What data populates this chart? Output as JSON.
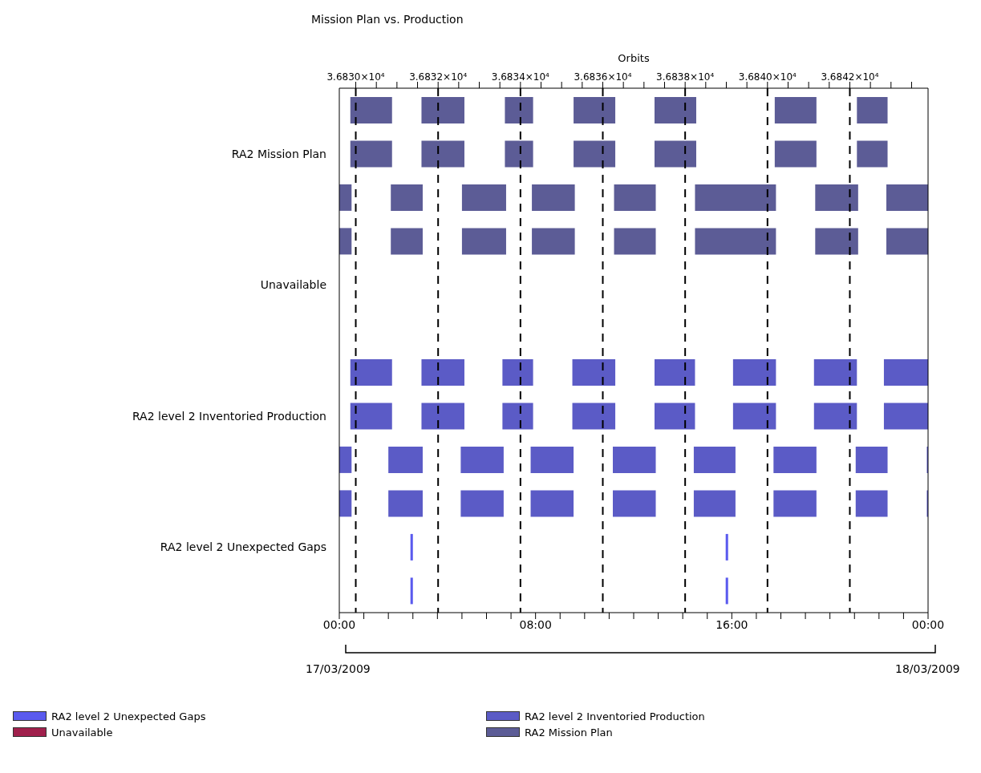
{
  "chart_data": {
    "type": "bar",
    "orientation": "horizontal",
    "title": "Mission Plan vs. Production",
    "x2label": "Orbits",
    "categories": [
      null,
      "RA2 Mission Plan",
      null,
      null,
      "Unavailable",
      null,
      null,
      "RA2 level 2 Inventoried Production",
      null,
      null,
      "RA2 level 2 Unexpected Gaps",
      null
    ],
    "xlim": [
      0,
      24
    ],
    "xticks": [
      {
        "value": 0,
        "label": "00:00"
      },
      {
        "value": 1,
        "label": null
      },
      {
        "value": 2,
        "label": null
      },
      {
        "value": 3,
        "label": null
      },
      {
        "value": 4,
        "label": null
      },
      {
        "value": 5,
        "label": null
      },
      {
        "value": 6,
        "label": null
      },
      {
        "value": 7,
        "label": null
      },
      {
        "value": 8,
        "label": "08:00"
      },
      {
        "value": 9,
        "label": null
      },
      {
        "value": 10,
        "label": null
      },
      {
        "value": 11,
        "label": null
      },
      {
        "value": 12,
        "label": null
      },
      {
        "value": 13,
        "label": null
      },
      {
        "value": 14,
        "label": null
      },
      {
        "value": 15,
        "label": null
      },
      {
        "value": 16,
        "label": "16:00"
      },
      {
        "value": 17,
        "label": null
      },
      {
        "value": 18,
        "label": null
      },
      {
        "value": 19,
        "label": null
      },
      {
        "value": 20,
        "label": null
      },
      {
        "value": 21,
        "label": null
      },
      {
        "value": 22,
        "label": null
      },
      {
        "value": 23,
        "label": null
      },
      {
        "value": 24,
        "label": "00:00"
      }
    ],
    "x2lim": [
      36829.6,
      36843.9
    ],
    "x2ticks": [
      {
        "value": 36830,
        "label": "3.6830×10⁴"
      },
      {
        "value": 36830.5,
        "label": null
      },
      {
        "value": 36831,
        "label": null
      },
      {
        "value": 36831.5,
        "label": null
      },
      {
        "value": 36832,
        "label": "3.6832×10⁴"
      },
      {
        "value": 36832.5,
        "label": null
      },
      {
        "value": 36833,
        "label": null
      },
      {
        "value": 36833.5,
        "label": null
      },
      {
        "value": 36834,
        "label": "3.6834×10⁴"
      },
      {
        "value": 36834.5,
        "label": null
      },
      {
        "value": 36835,
        "label": null
      },
      {
        "value": 36835.5,
        "label": null
      },
      {
        "value": 36836,
        "label": "3.6836×10⁴"
      },
      {
        "value": 36836.5,
        "label": null
      },
      {
        "value": 36837,
        "label": null
      },
      {
        "value": 36837.5,
        "label": null
      },
      {
        "value": 36838,
        "label": "3.6838×10⁴"
      },
      {
        "value": 36838.5,
        "label": null
      },
      {
        "value": 36839,
        "label": null
      },
      {
        "value": 36839.5,
        "label": null
      },
      {
        "value": 36840,
        "label": "3.6840×10⁴"
      },
      {
        "value": 36840.5,
        "label": null
      },
      {
        "value": 36841,
        "label": null
      },
      {
        "value": 36841.5,
        "label": null
      },
      {
        "value": 36842,
        "label": "3.6842×10⁴"
      },
      {
        "value": 36842.5,
        "label": null
      },
      {
        "value": 36843,
        "label": null
      },
      {
        "value": 36843.5,
        "label": null
      }
    ],
    "ref_lines": [
      {
        "axis": "x2",
        "value": 36830,
        "color": "#000000",
        "line_style": "dashed"
      },
      {
        "axis": "x2",
        "value": 36832,
        "color": "#000000",
        "line_style": "dashed"
      },
      {
        "axis": "x2",
        "value": 36834,
        "color": "#000000",
        "line_style": "dashed"
      },
      {
        "axis": "x2",
        "value": 36836,
        "color": "#000000",
        "line_style": "dashed"
      },
      {
        "axis": "x2",
        "value": 36838,
        "color": "#000000",
        "line_style": "dashed"
      },
      {
        "axis": "x2",
        "value": 36840,
        "color": "#000000",
        "line_style": "dashed"
      },
      {
        "axis": "x2",
        "value": 36842,
        "color": "#000000",
        "line_style": "dashed"
      }
    ],
    "annotations": [
      "17/03/2009",
      "18/03/2009"
    ],
    "legend": "bottom",
    "series": [
      {
        "name": "RA2 level 2 Unexpected Gaps",
        "color": "#5a5aee",
        "base": [
          null,
          null,
          null,
          null,
          null,
          null,
          null,
          null,
          null,
          null,
          2.9,
          2.9
        ],
        "values": [
          null,
          null,
          null,
          null,
          null,
          null,
          null,
          null,
          null,
          null,
          0.1,
          0.1
        ]
      },
      {
        "color": "#5a5aee",
        "base": [
          null,
          null,
          null,
          null,
          null,
          null,
          null,
          null,
          null,
          null,
          15.75,
          15.75
        ],
        "values": [
          null,
          null,
          null,
          null,
          null,
          null,
          null,
          null,
          null,
          null,
          0.1,
          0.1
        ]
      },
      {
        "name": "Unavailable",
        "color": "#a0204c",
        "values": [
          null,
          null,
          null,
          null,
          null,
          null,
          null,
          null,
          null,
          null,
          null,
          null
        ]
      },
      {
        "name": "RA2 level 2 Inventoried Production",
        "color": "#5b5bc6",
        "base": [
          null,
          null,
          null,
          null,
          null,
          null,
          0.45,
          0.45,
          0,
          0,
          null,
          null
        ],
        "values": [
          null,
          null,
          null,
          null,
          null,
          null,
          1.7,
          1.7,
          0.5,
          0.5,
          null,
          null
        ]
      },
      {
        "color": "#5b5bc6",
        "base": [
          null,
          null,
          null,
          null,
          null,
          null,
          3.35,
          3.35,
          2,
          2,
          null,
          null
        ],
        "values": [
          null,
          null,
          null,
          null,
          null,
          null,
          1.75,
          1.75,
          1.4,
          1.4,
          null,
          null
        ]
      },
      {
        "color": "#5b5bc6",
        "base": [
          null,
          null,
          null,
          null,
          null,
          null,
          6.65,
          6.65,
          4.95,
          4.95,
          null,
          null
        ],
        "values": [
          null,
          null,
          null,
          null,
          null,
          null,
          1.25,
          1.25,
          1.75,
          1.75,
          null,
          null
        ]
      },
      {
        "color": "#5b5bc6",
        "base": [
          null,
          null,
          null,
          null,
          null,
          null,
          9.5,
          9.5,
          7.8,
          7.8,
          null,
          null
        ],
        "values": [
          null,
          null,
          null,
          null,
          null,
          null,
          1.75,
          1.75,
          1.75,
          1.75,
          null,
          null
        ]
      },
      {
        "color": "#5b5bc6",
        "base": [
          null,
          null,
          null,
          null,
          null,
          null,
          12.85,
          12.85,
          11.15,
          11.15,
          null,
          null
        ],
        "values": [
          null,
          null,
          null,
          null,
          null,
          null,
          1.65,
          1.65,
          1.75,
          1.75,
          null,
          null
        ]
      },
      {
        "color": "#5b5bc6",
        "base": [
          null,
          null,
          null,
          null,
          null,
          null,
          16.05,
          16.05,
          14.45,
          14.45,
          null,
          null
        ],
        "values": [
          null,
          null,
          null,
          null,
          null,
          null,
          1.75,
          1.75,
          1.7,
          1.7,
          null,
          null
        ]
      },
      {
        "color": "#5b5bc6",
        "base": [
          null,
          null,
          null,
          null,
          null,
          null,
          19.35,
          19.35,
          17.7,
          17.7,
          null,
          null
        ],
        "values": [
          null,
          null,
          null,
          null,
          null,
          null,
          1.75,
          1.75,
          1.75,
          1.75,
          null,
          null
        ]
      },
      {
        "color": "#5b5bc6",
        "base": [
          null,
          null,
          null,
          null,
          null,
          null,
          22.2,
          22.2,
          21.05,
          21.05,
          null,
          null
        ],
        "values": [
          null,
          null,
          null,
          null,
          null,
          null,
          1.8,
          1.8,
          1.3,
          1.3,
          null,
          null
        ]
      },
      {
        "color": "#5b5bc6",
        "base": [
          null,
          null,
          null,
          null,
          null,
          null,
          null,
          null,
          23.95,
          23.95,
          null,
          null
        ],
        "values": [
          null,
          null,
          null,
          null,
          null,
          null,
          null,
          null,
          0.05,
          0.05,
          null,
          null
        ]
      },
      {
        "name": "RA2 Mission Plan",
        "color": "#5c5c96",
        "base": [
          0.45,
          0.45,
          0,
          0,
          null,
          null,
          null,
          null,
          null,
          null,
          null,
          null
        ],
        "values": [
          1.7,
          1.7,
          0.5,
          0.5,
          null,
          null,
          null,
          null,
          null,
          null,
          null,
          null
        ]
      },
      {
        "color": "#5c5c96",
        "base": [
          3.35,
          3.35,
          2.1,
          2.1,
          null,
          null,
          null,
          null,
          null,
          null,
          null,
          null
        ],
        "values": [
          1.75,
          1.75,
          1.3,
          1.3,
          null,
          null,
          null,
          null,
          null,
          null,
          null,
          null
        ]
      },
      {
        "color": "#5c5c96",
        "base": [
          6.75,
          6.75,
          5,
          5,
          null,
          null,
          null,
          null,
          null,
          null,
          null,
          null
        ],
        "values": [
          1.15,
          1.15,
          1.8,
          1.8,
          null,
          null,
          null,
          null,
          null,
          null,
          null,
          null
        ]
      },
      {
        "color": "#5c5c96",
        "base": [
          9.55,
          9.55,
          7.85,
          7.85,
          null,
          null,
          null,
          null,
          null,
          null,
          null,
          null
        ],
        "values": [
          1.7,
          1.7,
          1.75,
          1.75,
          null,
          null,
          null,
          null,
          null,
          null,
          null,
          null
        ]
      },
      {
        "color": "#5c5c96",
        "base": [
          12.85,
          12.85,
          11.2,
          11.2,
          null,
          null,
          null,
          null,
          null,
          null,
          null,
          null
        ],
        "values": [
          1.7,
          1.7,
          1.7,
          1.7,
          null,
          null,
          null,
          null,
          null,
          null,
          null,
          null
        ]
      },
      {
        "color": "#5c5c96",
        "base": [
          17.75,
          17.75,
          14.5,
          14.5,
          null,
          null,
          null,
          null,
          null,
          null,
          null,
          null
        ],
        "values": [
          1.7,
          1.7,
          3.3,
          3.3,
          null,
          null,
          null,
          null,
          null,
          null,
          null,
          null
        ]
      },
      {
        "color": "#5c5c96",
        "base": [
          21.1,
          21.1,
          19.4,
          19.4,
          null,
          null,
          null,
          null,
          null,
          null,
          null,
          null
        ],
        "values": [
          1.25,
          1.25,
          1.75,
          1.75,
          null,
          null,
          null,
          null,
          null,
          null,
          null,
          null
        ]
      },
      {
        "color": "#5c5c96",
        "base": [
          null,
          null,
          22.3,
          22.3,
          null,
          null,
          null,
          null,
          null,
          null,
          null,
          null
        ],
        "values": [
          null,
          null,
          1.7,
          1.7,
          null,
          null,
          null,
          null,
          null,
          null,
          null,
          null
        ]
      }
    ]
  }
}
